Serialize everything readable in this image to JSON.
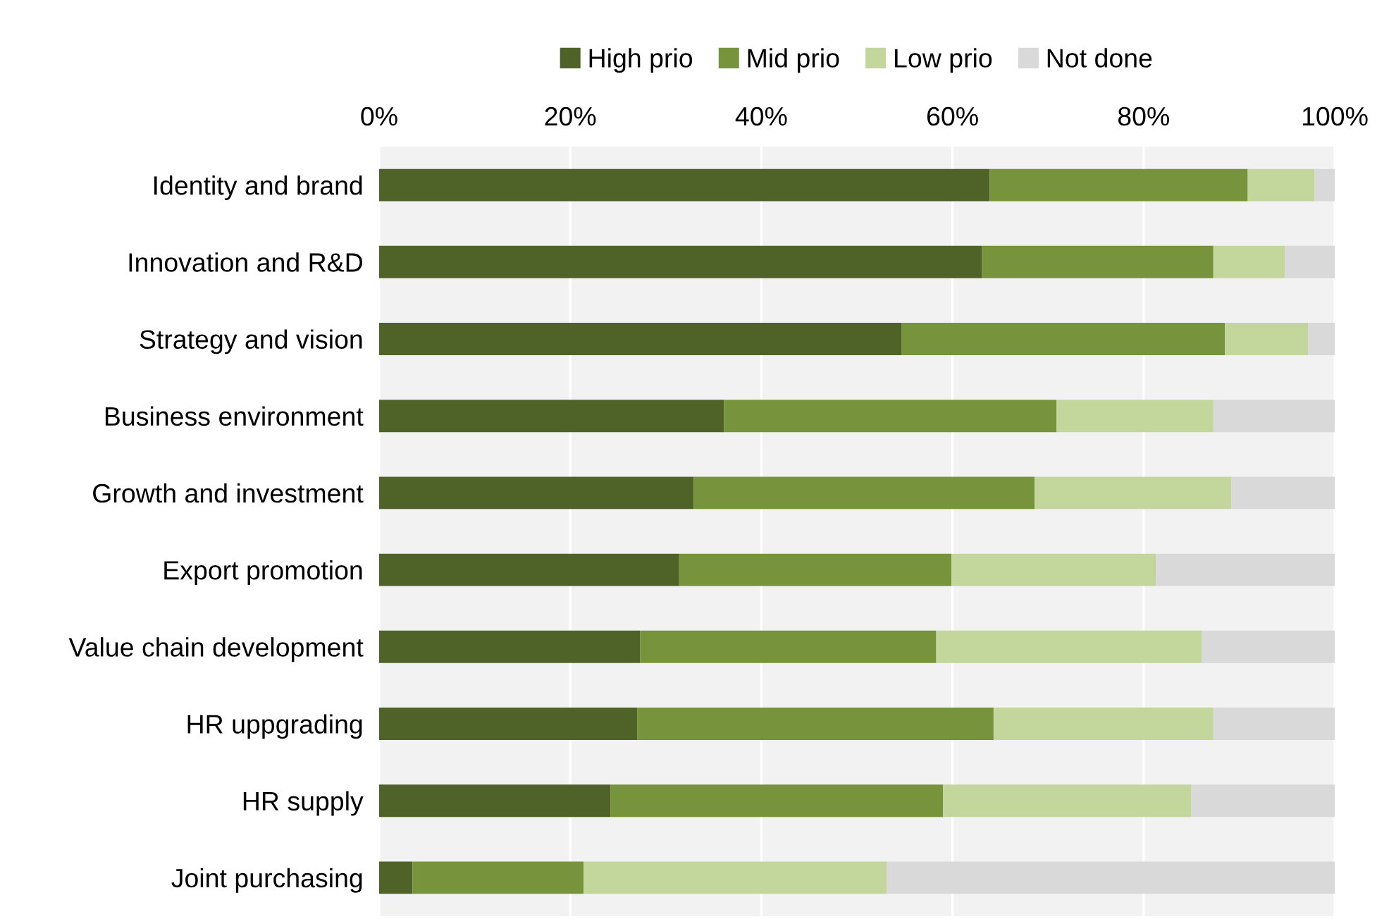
{
  "chart_data": {
    "type": "bar",
    "orientation": "horizontal",
    "stacked": true,
    "categories": [
      "Identity and brand",
      "Innovation and R&D",
      "Strategy and vision",
      "Business environment",
      "Growth and investment",
      "Export promotion",
      "Value chain development",
      "HR uppgrading",
      "HR supply",
      "Joint purchasing"
    ],
    "series": [
      {
        "name": "High prio",
        "color": "#4f6228",
        "values": [
          63.9,
          63.1,
          54.7,
          36.1,
          32.9,
          31.4,
          27.3,
          27.0,
          24.2,
          3.5
        ]
      },
      {
        "name": "Mid prio",
        "color": "#77933c",
        "values": [
          27.0,
          24.2,
          33.8,
          34.8,
          35.7,
          28.5,
          31.0,
          37.3,
          34.8,
          17.9
        ]
      },
      {
        "name": "Low prio",
        "color": "#c3d69b",
        "values": [
          7.0,
          7.5,
          8.7,
          16.4,
          20.6,
          21.4,
          27.8,
          23.0,
          26.0,
          31.7
        ]
      },
      {
        "name": "Not done",
        "color": "#d9d9d9",
        "values": [
          2.1,
          5.2,
          2.8,
          12.7,
          10.8,
          18.7,
          13.9,
          12.7,
          15.0,
          46.9
        ]
      }
    ],
    "xlim": [
      0,
      100
    ],
    "xticks": [
      {
        "value": 0,
        "label": "0%"
      },
      {
        "value": 20,
        "label": "20%"
      },
      {
        "value": 40,
        "label": "40%"
      },
      {
        "value": 60,
        "label": "60%"
      },
      {
        "value": 80,
        "label": "80%"
      },
      {
        "value": 100,
        "label": "100%"
      }
    ],
    "grid": "x",
    "legend": "top"
  }
}
